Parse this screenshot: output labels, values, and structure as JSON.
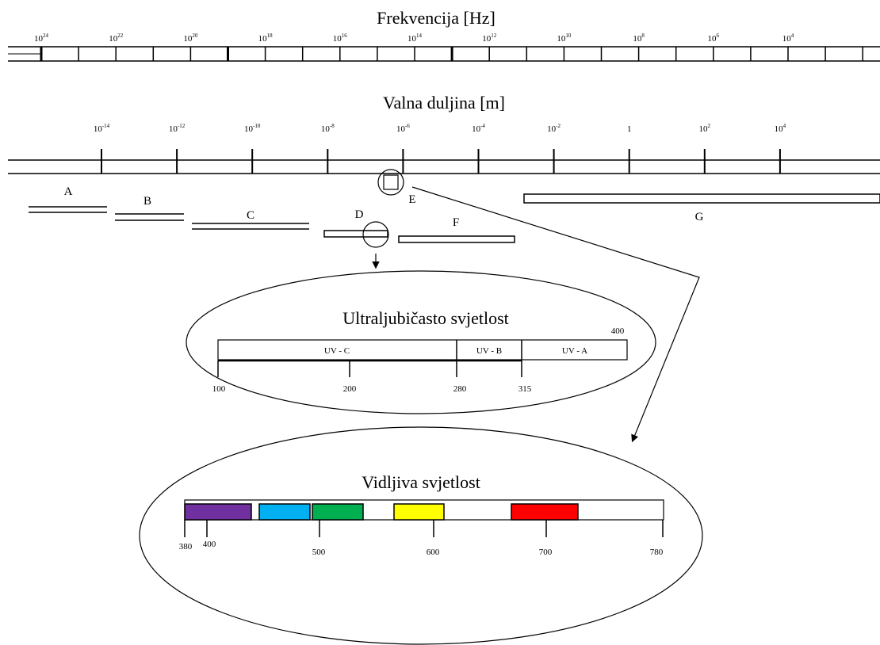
{
  "frequency_scale": {
    "title": "Frekvencija [Hz]",
    "exponents": [
      "24",
      "22",
      "20",
      "18",
      "16",
      "14",
      "12",
      "10",
      "8",
      "6",
      "4"
    ]
  },
  "wavelength_scale": {
    "title": "Valna duljina [m]",
    "labels": [
      {
        "base": "10",
        "exp": "-14"
      },
      {
        "base": "10",
        "exp": "-12"
      },
      {
        "base": "10",
        "exp": "-10"
      },
      {
        "base": "10",
        "exp": "-8"
      },
      {
        "base": "10",
        "exp": "-6"
      },
      {
        "base": "10",
        "exp": "-4"
      },
      {
        "base": "10",
        "exp": "-2"
      },
      {
        "base": "1",
        "exp": ""
      },
      {
        "base": "10",
        "exp": "2"
      },
      {
        "base": "10",
        "exp": "4"
      }
    ]
  },
  "bands": [
    "A",
    "B",
    "C",
    "D",
    "E",
    "F",
    "G"
  ],
  "uv": {
    "title": "Ultraljubičasto svjetlost",
    "segments": [
      "UV - C",
      "UV - B",
      "UV - A"
    ],
    "ticks": [
      "100",
      "200",
      "280",
      "315"
    ],
    "end_label": "400"
  },
  "visible": {
    "title": "Vidljiva svjetlost",
    "ticks": [
      "380",
      "400",
      "500",
      "600",
      "700",
      "780"
    ],
    "colors": [
      "#7030a0",
      "#00b0f0",
      "#00b050",
      "#ffff00",
      "#ff0000"
    ]
  }
}
